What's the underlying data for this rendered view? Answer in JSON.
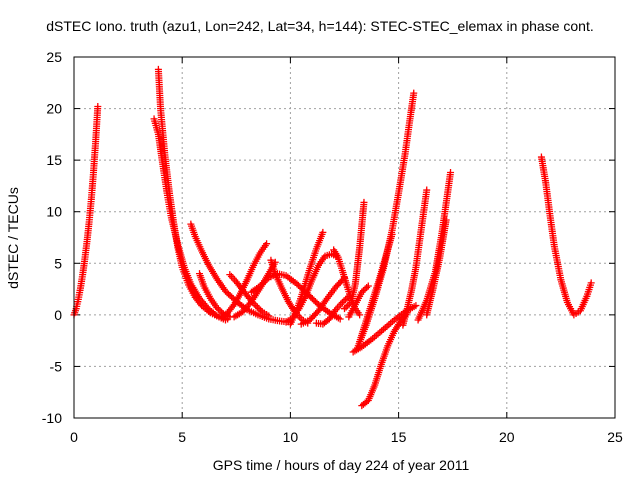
{
  "chart_data": {
    "type": "scatter",
    "title": "dSTEC Iono. truth (azu1, Lon=242, Lat=34, h=144): STEC-STEC_elemax in phase cont.",
    "xlabel": "GPS time / hours of day 224 of year 2011",
    "ylabel": "dSTEC  / TECUs",
    "xlim": [
      0,
      25
    ],
    "ylim": [
      -10,
      25
    ],
    "xticks": [
      0,
      5,
      10,
      15,
      20,
      25
    ],
    "yticks": [
      -10,
      -5,
      0,
      5,
      10,
      15,
      20,
      25
    ],
    "xtick_labels": [
      "0",
      "5",
      "10",
      "15",
      "20",
      "25"
    ],
    "ytick_labels": [
      "-10",
      "-5",
      "0",
      "5",
      "10",
      "15",
      "20",
      "25"
    ],
    "grid": true,
    "legend": "none",
    "marker": "+",
    "marker_color": "#ff0000",
    "series": [
      {
        "x": [
          0.0,
          0.1,
          0.2,
          0.3,
          0.4,
          0.5,
          0.6,
          0.7,
          0.8,
          0.9,
          1.0,
          1.1
        ],
        "y": [
          0.0,
          0.6,
          1.5,
          2.6,
          3.9,
          5.4,
          7.1,
          9.0,
          11.2,
          13.8,
          16.8,
          20.2
        ]
      },
      {
        "x": [
          3.9,
          4.0,
          4.2,
          4.4,
          4.6,
          4.8,
          5.0,
          5.3,
          5.6,
          5.9,
          6.3,
          6.7,
          7.1
        ],
        "y": [
          23.8,
          20.0,
          15.5,
          12.0,
          9.0,
          6.5,
          4.6,
          2.9,
          1.7,
          0.9,
          0.2,
          -0.2,
          -0.4
        ]
      },
      {
        "x": [
          3.7,
          3.9,
          4.1,
          4.3,
          4.5,
          4.8,
          5.1,
          5.4,
          5.8,
          6.2,
          6.6,
          7.0
        ],
        "y": [
          19.0,
          17.5,
          14.6,
          11.8,
          9.4,
          6.8,
          4.6,
          3.0,
          1.6,
          0.6,
          -0.1,
          -0.5
        ]
      },
      {
        "x": [
          5.4,
          5.6,
          5.9,
          6.2,
          6.6,
          7.0,
          7.5,
          8.0,
          8.5,
          9.0,
          9.5,
          10.0
        ],
        "y": [
          8.8,
          7.6,
          6.2,
          4.9,
          3.5,
          2.3,
          1.3,
          0.5,
          0.0,
          -0.4,
          -0.6,
          -0.7
        ]
      },
      {
        "x": [
          5.8,
          6.0,
          6.3,
          6.6,
          6.9,
          7.2
        ],
        "y": [
          4.0,
          2.8,
          1.6,
          0.7,
          0.1,
          -0.2
        ]
      },
      {
        "x": [
          6.8,
          7.1,
          7.4,
          7.7,
          8.0,
          8.3,
          8.6,
          8.9
        ],
        "y": [
          -0.3,
          0.2,
          1.0,
          2.1,
          3.4,
          4.8,
          6.0,
          6.9
        ]
      },
      {
        "x": [
          7.2,
          7.5,
          7.8,
          8.1,
          8.4,
          8.7,
          9.0
        ],
        "y": [
          3.9,
          3.2,
          2.4,
          1.6,
          0.9,
          0.3,
          -0.1
        ]
      },
      {
        "x": [
          7.4,
          7.8,
          8.2,
          8.6,
          9.0,
          9.3
        ],
        "y": [
          -0.2,
          0.3,
          1.3,
          2.6,
          4.0,
          5.1
        ]
      },
      {
        "x": [
          8.2,
          8.6,
          9.0,
          9.4,
          9.8,
          10.3,
          10.8,
          11.3,
          11.8,
          12.3
        ],
        "y": [
          2.2,
          2.8,
          3.6,
          4.0,
          3.8,
          3.0,
          2.0,
          1.0,
          0.2,
          -0.4
        ]
      },
      {
        "x": [
          9.1,
          9.3,
          9.6,
          9.9,
          10.2,
          10.5,
          10.8
        ],
        "y": [
          5.3,
          4.0,
          2.6,
          1.3,
          0.3,
          -0.4,
          -0.8
        ]
      },
      {
        "x": [
          9.8,
          10.1,
          10.4,
          10.7,
          11.0,
          11.3,
          11.6,
          11.9,
          12.2
        ],
        "y": [
          -0.7,
          -0.3,
          0.6,
          1.8,
          3.4,
          4.8,
          5.7,
          5.9,
          5.6
        ]
      },
      {
        "x": [
          10.0,
          10.3,
          10.6,
          10.9,
          11.2,
          11.5
        ],
        "y": [
          -0.9,
          0.5,
          2.4,
          4.5,
          6.4,
          8.0
        ]
      },
      {
        "x": [
          10.5,
          10.9,
          11.3,
          11.7,
          12.1,
          12.5
        ],
        "y": [
          -0.9,
          -0.5,
          0.4,
          1.6,
          2.7,
          3.6
        ]
      },
      {
        "x": [
          11.2,
          11.5,
          11.8,
          12.1,
          12.4,
          12.7
        ],
        "y": [
          -0.8,
          -0.9,
          -0.4,
          0.5,
          1.2,
          1.8
        ]
      },
      {
        "x": [
          12.0,
          12.2,
          12.4,
          12.6,
          12.8,
          13.0,
          13.2
        ],
        "y": [
          6.3,
          5.6,
          4.3,
          2.9,
          1.6,
          0.6,
          0.0
        ]
      },
      {
        "x": [
          12.7,
          13.0,
          13.3,
          13.6
        ],
        "y": [
          -0.2,
          1.0,
          2.2,
          2.8
        ]
      },
      {
        "x": [
          12.5,
          12.8,
          13.0,
          13.2,
          13.4
        ],
        "y": [
          0.6,
          1.2,
          3.0,
          6.5,
          10.9
        ]
      },
      {
        "x": [
          13.3,
          13.6,
          13.9,
          14.2,
          14.5,
          14.8,
          15.1,
          15.4
        ],
        "y": [
          -8.8,
          -8.3,
          -6.8,
          -4.8,
          -3.0,
          -1.6,
          -0.6,
          0.2
        ]
      },
      {
        "x": [
          12.9,
          13.3,
          13.8,
          14.3,
          14.8,
          15.3,
          15.8
        ],
        "y": [
          -3.6,
          -3.1,
          -2.3,
          -1.4,
          -0.5,
          0.3,
          0.9
        ]
      },
      {
        "x": [
          13.1,
          13.5,
          13.9,
          14.3,
          14.7,
          15.0,
          15.3,
          15.5,
          15.7
        ],
        "y": [
          -3.2,
          -1.0,
          1.6,
          4.5,
          8.2,
          11.8,
          15.6,
          18.6,
          21.5
        ]
      },
      {
        "x": [
          13.2,
          13.5,
          13.8,
          14.1,
          14.4,
          14.7
        ],
        "y": [
          -2.6,
          -0.6,
          1.4,
          3.4,
          5.6,
          7.8
        ]
      },
      {
        "x": [
          15.2,
          15.4,
          15.6,
          15.8,
          16.0,
          16.3
        ],
        "y": [
          -1.0,
          0.6,
          2.4,
          4.6,
          7.6,
          12.1
        ]
      },
      {
        "x": [
          15.9,
          16.3,
          16.7,
          17.0,
          17.4
        ],
        "y": [
          -0.5,
          1.4,
          4.2,
          7.9,
          13.8
        ]
      },
      {
        "x": [
          16.3,
          16.6,
          16.9,
          17.2
        ],
        "y": [
          0.0,
          2.6,
          5.5,
          9.2
        ]
      },
      {
        "x": [
          21.6,
          21.8,
          22.0,
          22.2,
          22.5,
          22.8,
          23.1,
          23.4,
          23.7,
          23.9
        ],
        "y": [
          15.3,
          12.8,
          9.6,
          6.6,
          3.4,
          1.2,
          0.0,
          0.4,
          1.8,
          3.1
        ]
      }
    ]
  }
}
